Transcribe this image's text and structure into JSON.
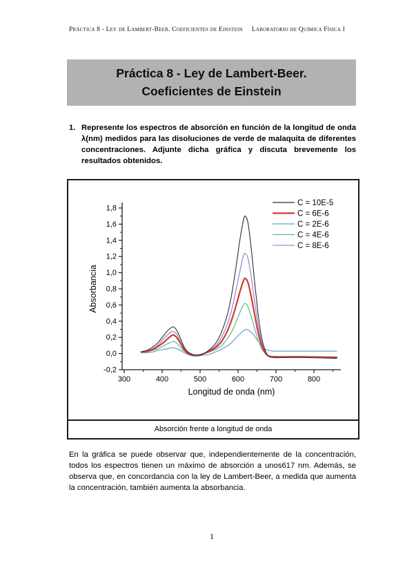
{
  "page": {
    "header": {
      "left": "Práctica 8 - Ley de Lambert-Beer. Coeficientes de Einstein",
      "right": "Laboratorio de Química Física I"
    },
    "title": {
      "line1": "Práctica 8 - Ley de Lambert-Beer.",
      "line2": "Coeficientes de Einstein"
    },
    "question": {
      "number": "1.",
      "text": "Represente los espectros de absorción en función de la longitud de onda λ(nm) medidos para las disoluciones de verde de malaquita de diferentes concentraciones. Adjunte dicha gráfica y discuta brevemente los resultados obtenidos."
    },
    "figure_caption": "Absorción frente a longitud de onda",
    "discussion": "En la gráfica se puede observar que, independientemente de la concentración, todos los espectros tienen un máximo de absorción a unos617 nm. Además, se observa que, en concordancia con la ley de Lambert-Beer, a medida que aumenta la concentración, también aumenta la absorbancia.",
    "page_number": "1"
  },
  "chart_data": {
    "type": "line",
    "title": "",
    "xlabel": "Longitud de onda (nm)",
    "ylabel": "Absorbancia",
    "xlim": [
      250,
      870
    ],
    "ylim": [
      -0.2,
      1.8
    ],
    "x_ticks": [
      300,
      400,
      500,
      600,
      700,
      800
    ],
    "y_ticks": [
      -0.2,
      0.0,
      0.2,
      0.4,
      0.6,
      0.8,
      1.0,
      1.2,
      1.4,
      1.6,
      1.8
    ],
    "y_tick_labels": [
      "-0,2",
      "0,0",
      "0,2",
      "0,4",
      "0,6",
      "0,8",
      "1,0",
      "1,2",
      "1,4",
      "1,6",
      "1,8"
    ],
    "grid": false,
    "legend_position": "top-right",
    "peak_wavelength_nm": 617,
    "series": [
      {
        "name": "C = 10E-5",
        "color": "#2e2e2e",
        "width": 1.1,
        "points": [
          [
            345,
            0.02
          ],
          [
            360,
            0.04
          ],
          [
            375,
            0.08
          ],
          [
            390,
            0.14
          ],
          [
            402,
            0.21
          ],
          [
            414,
            0.28
          ],
          [
            424,
            0.32
          ],
          [
            430,
            0.33
          ],
          [
            438,
            0.29
          ],
          [
            448,
            0.19
          ],
          [
            458,
            0.08
          ],
          [
            468,
            0.02
          ],
          [
            480,
            -0.01
          ],
          [
            495,
            -0.02
          ],
          [
            510,
            0.0
          ],
          [
            525,
            0.05
          ],
          [
            540,
            0.12
          ],
          [
            555,
            0.25
          ],
          [
            570,
            0.45
          ],
          [
            582,
            0.7
          ],
          [
            594,
            1.05
          ],
          [
            604,
            1.38
          ],
          [
            612,
            1.6
          ],
          [
            618,
            1.7
          ],
          [
            626,
            1.62
          ],
          [
            634,
            1.33
          ],
          [
            643,
            0.92
          ],
          [
            652,
            0.52
          ],
          [
            661,
            0.22
          ],
          [
            670,
            0.06
          ],
          [
            680,
            -0.03
          ],
          [
            695,
            -0.05
          ],
          [
            730,
            -0.05
          ],
          [
            780,
            -0.05
          ],
          [
            860,
            -0.06
          ]
        ]
      },
      {
        "name": "C = 6E-6",
        "color": "#cf3a32",
        "width": 2.2,
        "points": [
          [
            345,
            0.02
          ],
          [
            360,
            0.03
          ],
          [
            375,
            0.05
          ],
          [
            390,
            0.09
          ],
          [
            402,
            0.13
          ],
          [
            414,
            0.18
          ],
          [
            424,
            0.22
          ],
          [
            430,
            0.23
          ],
          [
            438,
            0.2
          ],
          [
            448,
            0.13
          ],
          [
            458,
            0.05
          ],
          [
            468,
            0.0
          ],
          [
            480,
            -0.02
          ],
          [
            495,
            -0.02
          ],
          [
            510,
            0.0
          ],
          [
            525,
            0.03
          ],
          [
            540,
            0.07
          ],
          [
            555,
            0.14
          ],
          [
            570,
            0.26
          ],
          [
            582,
            0.4
          ],
          [
            594,
            0.58
          ],
          [
            604,
            0.75
          ],
          [
            612,
            0.87
          ],
          [
            618,
            0.93
          ],
          [
            626,
            0.88
          ],
          [
            634,
            0.72
          ],
          [
            643,
            0.5
          ],
          [
            652,
            0.28
          ],
          [
            661,
            0.12
          ],
          [
            670,
            0.02
          ],
          [
            680,
            -0.03
          ],
          [
            695,
            -0.04
          ],
          [
            730,
            -0.04
          ],
          [
            780,
            -0.04
          ],
          [
            860,
            -0.05
          ]
        ]
      },
      {
        "name": "C = 2E-6",
        "color": "#6d9ac9",
        "width": 1.2,
        "points": [
          [
            345,
            0.01
          ],
          [
            360,
            0.01
          ],
          [
            375,
            0.02
          ],
          [
            390,
            0.04
          ],
          [
            402,
            0.05
          ],
          [
            414,
            0.06
          ],
          [
            424,
            0.07
          ],
          [
            430,
            0.07
          ],
          [
            438,
            0.06
          ],
          [
            448,
            0.04
          ],
          [
            458,
            0.01
          ],
          [
            468,
            -0.01
          ],
          [
            480,
            -0.03
          ],
          [
            495,
            -0.03
          ],
          [
            510,
            -0.02
          ],
          [
            525,
            -0.01
          ],
          [
            540,
            0.02
          ],
          [
            555,
            0.05
          ],
          [
            570,
            0.09
          ],
          [
            582,
            0.13
          ],
          [
            594,
            0.19
          ],
          [
            604,
            0.24
          ],
          [
            614,
            0.28
          ],
          [
            622,
            0.3
          ],
          [
            630,
            0.28
          ],
          [
            640,
            0.24
          ],
          [
            650,
            0.17
          ],
          [
            660,
            0.11
          ],
          [
            670,
            0.06
          ],
          [
            680,
            0.04
          ],
          [
            695,
            0.03
          ],
          [
            730,
            0.03
          ],
          [
            780,
            0.03
          ],
          [
            860,
            0.03
          ]
        ]
      },
      {
        "name": "C = 4E-6",
        "color": "#5cb88f",
        "width": 1.2,
        "points": [
          [
            345,
            0.01
          ],
          [
            360,
            0.02
          ],
          [
            375,
            0.04
          ],
          [
            390,
            0.06
          ],
          [
            402,
            0.09
          ],
          [
            414,
            0.12
          ],
          [
            424,
            0.14
          ],
          [
            430,
            0.15
          ],
          [
            438,
            0.13
          ],
          [
            448,
            0.08
          ],
          [
            458,
            0.03
          ],
          [
            468,
            0.0
          ],
          [
            480,
            -0.02
          ],
          [
            495,
            -0.02
          ],
          [
            510,
            0.0
          ],
          [
            525,
            0.02
          ],
          [
            540,
            0.05
          ],
          [
            555,
            0.09
          ],
          [
            570,
            0.17
          ],
          [
            582,
            0.26
          ],
          [
            594,
            0.38
          ],
          [
            604,
            0.5
          ],
          [
            612,
            0.58
          ],
          [
            618,
            0.62
          ],
          [
            626,
            0.58
          ],
          [
            634,
            0.47
          ],
          [
            643,
            0.32
          ],
          [
            652,
            0.18
          ],
          [
            661,
            0.07
          ],
          [
            670,
            0.01
          ],
          [
            680,
            -0.03
          ],
          [
            695,
            -0.04
          ],
          [
            730,
            -0.04
          ],
          [
            780,
            -0.04
          ],
          [
            860,
            -0.04
          ]
        ]
      },
      {
        "name": "C = 8E-6",
        "color": "#a187d6",
        "width": 1.3,
        "points": [
          [
            345,
            0.02
          ],
          [
            360,
            0.03
          ],
          [
            375,
            0.06
          ],
          [
            390,
            0.11
          ],
          [
            402,
            0.17
          ],
          [
            414,
            0.23
          ],
          [
            424,
            0.27
          ],
          [
            430,
            0.27
          ],
          [
            438,
            0.24
          ],
          [
            448,
            0.15
          ],
          [
            458,
            0.06
          ],
          [
            468,
            0.01
          ],
          [
            480,
            -0.02
          ],
          [
            495,
            -0.02
          ],
          [
            510,
            0.0
          ],
          [
            525,
            0.04
          ],
          [
            540,
            0.09
          ],
          [
            555,
            0.19
          ],
          [
            570,
            0.34
          ],
          [
            582,
            0.52
          ],
          [
            594,
            0.77
          ],
          [
            604,
            1.0
          ],
          [
            612,
            1.17
          ],
          [
            618,
            1.24
          ],
          [
            626,
            1.18
          ],
          [
            634,
            0.97
          ],
          [
            643,
            0.67
          ],
          [
            652,
            0.38
          ],
          [
            661,
            0.16
          ],
          [
            670,
            0.04
          ],
          [
            680,
            -0.03
          ],
          [
            695,
            -0.04
          ],
          [
            730,
            -0.04
          ],
          [
            780,
            -0.04
          ],
          [
            860,
            -0.05
          ]
        ]
      }
    ]
  }
}
